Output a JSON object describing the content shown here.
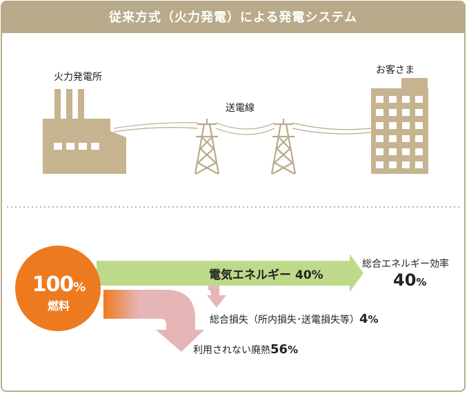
{
  "title": "従来方式（火力発電）による発電システム",
  "labels": {
    "plant": "火力発電所",
    "transmission": "送電線",
    "customer": "お客さま"
  },
  "flow": {
    "input_value": "100",
    "input_unit": "%",
    "input_label": "燃料",
    "electric_label": "電気エネルギー",
    "electric_value": "40%",
    "efficiency_label": "総合エネルギー効率",
    "efficiency_value": "40",
    "efficiency_unit": "%",
    "loss_label": "総合損失（所内損失･送電損失等）",
    "loss_value": "4",
    "loss_unit": "%",
    "heat_label": "利用されない廃熱",
    "heat_value": "56",
    "heat_unit": "%"
  },
  "colors": {
    "header": "#b8aa8a",
    "building": "#c5b48f",
    "fuel": "#ee7a1f",
    "electric": "#bfd98a",
    "loss": "#e6b5b5"
  }
}
